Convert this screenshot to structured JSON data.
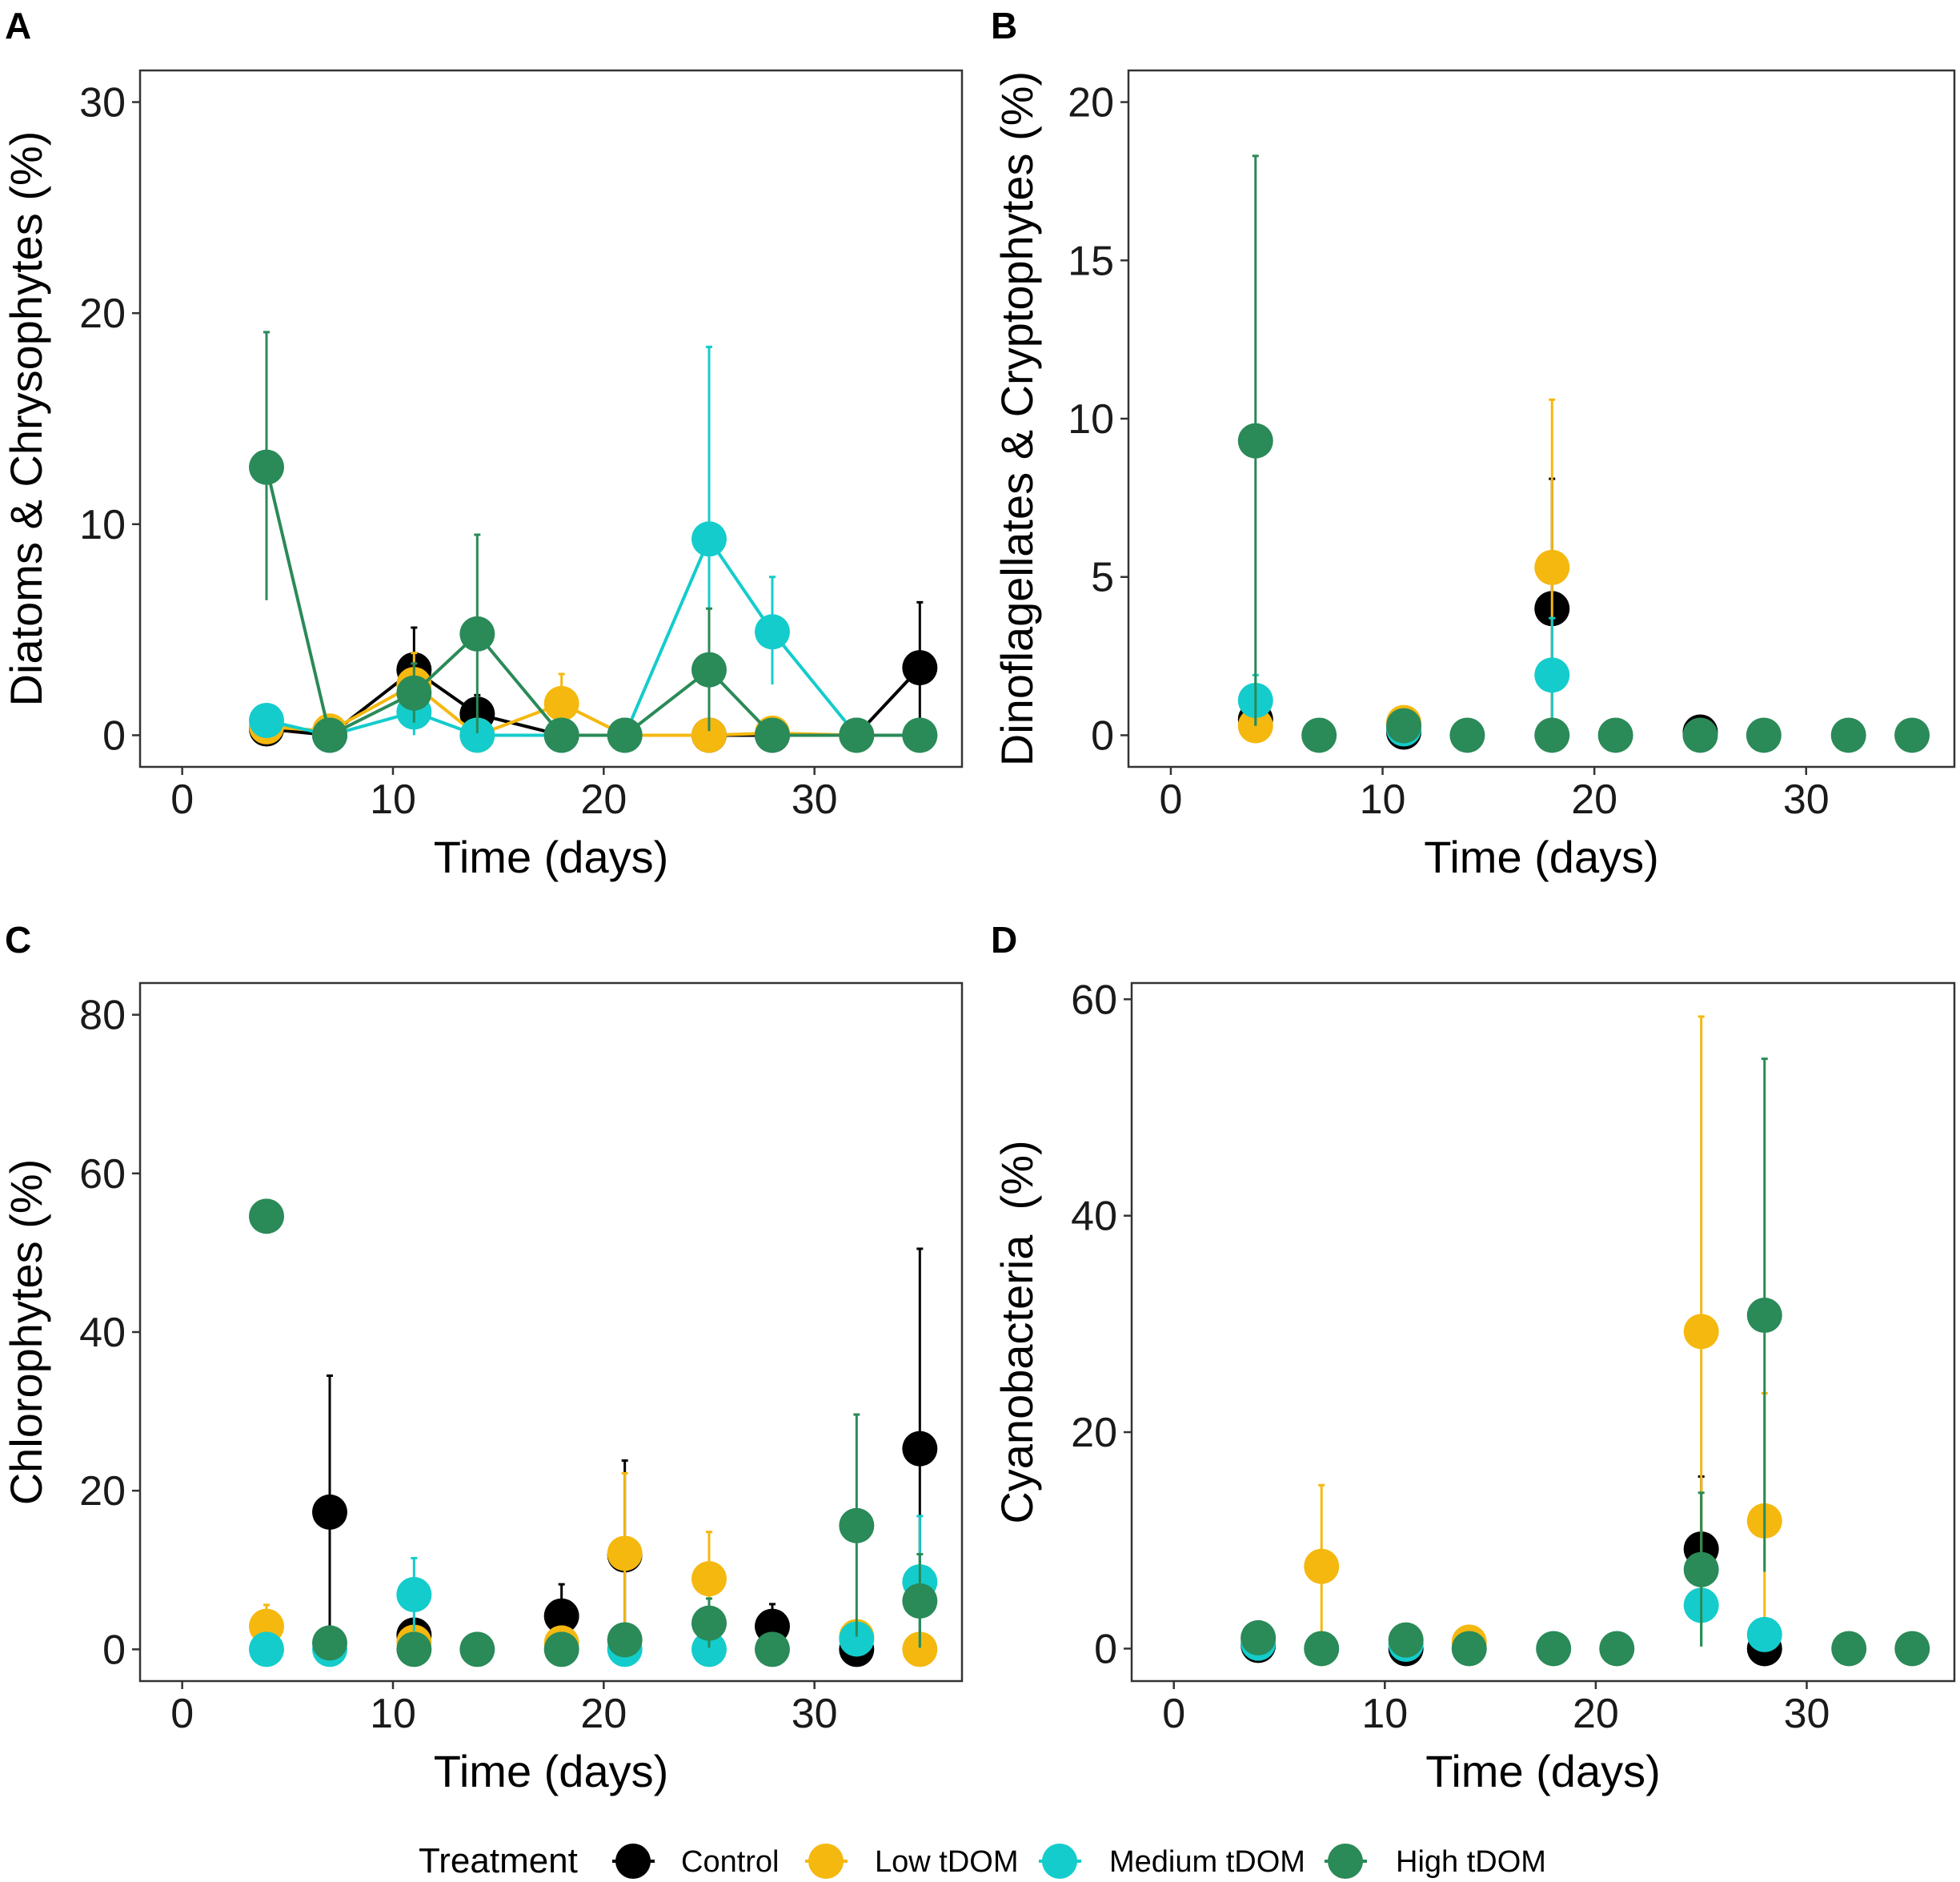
{
  "legend": {
    "title": "Treatment",
    "items": [
      {
        "label": "Control",
        "color": "#000000"
      },
      {
        "label": "Low tDOM",
        "color": "#F5B80F"
      },
      {
        "label": "Medium tDOM",
        "color": "#14CCCC"
      },
      {
        "label": "High tDOM",
        "color": "#2A8A58"
      }
    ]
  },
  "chart_data": [
    {
      "panel": "A",
      "type": "line",
      "xlabel": "Time (days)",
      "ylabel": "Diatoms & Chrysophytes (%)",
      "xlim": [
        -2,
        37
      ],
      "ylim": [
        -1.5,
        31.5
      ],
      "xticks": [
        0,
        10,
        20,
        30
      ],
      "yticks": [
        0,
        10,
        20,
        30
      ],
      "series": [
        {
          "name": "Control",
          "lines": true,
          "points": [
            {
              "x": 4,
              "y": 0.3,
              "lo": 0.1,
              "hi": 0.5
            },
            {
              "x": 7,
              "y": 0,
              "lo": 0,
              "hi": 0
            },
            {
              "x": 11,
              "y": 3.1,
              "lo": 1,
              "hi": 5.1
            },
            {
              "x": 14,
              "y": 1,
              "lo": 0.2,
              "hi": 1.9
            },
            {
              "x": 18,
              "y": 0,
              "lo": 0,
              "hi": 0
            },
            {
              "x": 21,
              "y": 0,
              "lo": 0,
              "hi": 0
            },
            {
              "x": 25,
              "y": 0,
              "lo": 0,
              "hi": 0
            },
            {
              "x": 28,
              "y": 0,
              "lo": 0,
              "hi": 0
            },
            {
              "x": 32,
              "y": 0,
              "lo": 0,
              "hi": 0
            },
            {
              "x": 35,
              "y": 3.2,
              "lo": 0,
              "hi": 6.3
            }
          ]
        },
        {
          "name": "Low tDOM",
          "lines": true,
          "points": [
            {
              "x": 4,
              "y": 0.4,
              "lo": 0.2,
              "hi": 0.6
            },
            {
              "x": 7,
              "y": 0.2,
              "lo": 0,
              "hi": 0.4
            },
            {
              "x": 11,
              "y": 2.4,
              "lo": 0.9,
              "hi": 3.9
            },
            {
              "x": 14,
              "y": 0,
              "lo": 0,
              "hi": 0
            },
            {
              "x": 18,
              "y": 1.5,
              "lo": 0,
              "hi": 2.9
            },
            {
              "x": 21,
              "y": 0,
              "lo": 0,
              "hi": 0
            },
            {
              "x": 25,
              "y": 0,
              "lo": 0,
              "hi": 0
            },
            {
              "x": 28,
              "y": 0.1,
              "lo": 0,
              "hi": 0.3
            },
            {
              "x": 32,
              "y": 0,
              "lo": 0,
              "hi": 0
            },
            {
              "x": 35,
              "y": 0,
              "lo": 0,
              "hi": 0
            }
          ]
        },
        {
          "name": "Medium tDOM",
          "lines": true,
          "points": [
            {
              "x": 4,
              "y": 0.7,
              "lo": 0.3,
              "hi": 1.1
            },
            {
              "x": 7,
              "y": 0,
              "lo": 0,
              "hi": 0
            },
            {
              "x": 11,
              "y": 1.1,
              "lo": 0,
              "hi": 2.3
            },
            {
              "x": 14,
              "y": 0,
              "lo": 0,
              "hi": 0
            },
            {
              "x": 18,
              "y": 0,
              "lo": 0,
              "hi": 0
            },
            {
              "x": 21,
              "y": 0,
              "lo": 0,
              "hi": 0
            },
            {
              "x": 25,
              "y": 9.3,
              "lo": 0.2,
              "hi": 18.4
            },
            {
              "x": 28,
              "y": 4.9,
              "lo": 2.4,
              "hi": 7.5
            },
            {
              "x": 32,
              "y": 0,
              "lo": 0,
              "hi": 0
            },
            {
              "x": 35,
              "y": 0,
              "lo": 0,
              "hi": 0
            }
          ]
        },
        {
          "name": "High tDOM",
          "lines": true,
          "points": [
            {
              "x": 4,
              "y": 12.7,
              "lo": 6.4,
              "hi": 19.1
            },
            {
              "x": 7,
              "y": 0,
              "lo": 0,
              "hi": 0
            },
            {
              "x": 11,
              "y": 2,
              "lo": 0.6,
              "hi": 3.4
            },
            {
              "x": 14,
              "y": 4.8,
              "lo": 0.1,
              "hi": 9.5
            },
            {
              "x": 18,
              "y": 0,
              "lo": 0,
              "hi": 0
            },
            {
              "x": 21,
              "y": 0,
              "lo": 0,
              "hi": 0
            },
            {
              "x": 25,
              "y": 3.1,
              "lo": 0.2,
              "hi": 6
            },
            {
              "x": 28,
              "y": 0,
              "lo": 0,
              "hi": 0
            },
            {
              "x": 32,
              "y": 0,
              "lo": 0,
              "hi": 0
            },
            {
              "x": 35,
              "y": 0,
              "lo": 0,
              "hi": 0
            }
          ]
        }
      ]
    },
    {
      "panel": "B",
      "type": "scatter",
      "xlabel": "Time (days)",
      "ylabel": "Dinoflagellates & Cryptophytes (%)",
      "xlim": [
        -2,
        37
      ],
      "ylim": [
        -1,
        21
      ],
      "xticks": [
        0,
        10,
        20,
        30
      ],
      "yticks": [
        0,
        5,
        10,
        15,
        20
      ],
      "series": [
        {
          "name": "Control",
          "lines": false,
          "points": [
            {
              "x": 4,
              "y": 0.5,
              "lo": 0.2,
              "hi": 0.8
            },
            {
              "x": 11,
              "y": 0.1,
              "lo": 0,
              "hi": 0.2
            },
            {
              "x": 18,
              "y": 4,
              "lo": 0,
              "hi": 8.1
            },
            {
              "x": 25,
              "y": 0.1,
              "lo": 0.05,
              "hi": 0.15
            }
          ]
        },
        {
          "name": "Low tDOM",
          "lines": false,
          "points": [
            {
              "x": 4,
              "y": 0.3,
              "lo": 0.1,
              "hi": 0.5
            },
            {
              "x": 11,
              "y": 0.4,
              "lo": 0.1,
              "hi": 0.7
            },
            {
              "x": 18,
              "y": 5.3,
              "lo": 0.1,
              "hi": 10.6
            }
          ]
        },
        {
          "name": "Medium tDOM",
          "lines": false,
          "points": [
            {
              "x": 4,
              "y": 1.1,
              "lo": 0.3,
              "hi": 1.9
            },
            {
              "x": 11,
              "y": 0.2,
              "lo": 0,
              "hi": 0.4
            },
            {
              "x": 18,
              "y": 1.9,
              "lo": 0.1,
              "hi": 3.7
            }
          ]
        },
        {
          "name": "High tDOM",
          "lines": false,
          "points": [
            {
              "x": 4,
              "y": 9.3,
              "lo": 0.3,
              "hi": 18.3
            },
            {
              "x": 7,
              "y": 0,
              "lo": 0,
              "hi": 0
            },
            {
              "x": 11,
              "y": 0.3,
              "lo": 0,
              "hi": 0.6
            },
            {
              "x": 14,
              "y": 0,
              "lo": 0,
              "hi": 0
            },
            {
              "x": 18,
              "y": 0,
              "lo": 0,
              "hi": 0
            },
            {
              "x": 21,
              "y": 0,
              "lo": 0,
              "hi": 0
            },
            {
              "x": 25,
              "y": 0,
              "lo": 0,
              "hi": 0
            },
            {
              "x": 28,
              "y": 0,
              "lo": 0,
              "hi": 0
            },
            {
              "x": 32,
              "y": 0,
              "lo": 0,
              "hi": 0
            },
            {
              "x": 35,
              "y": 0,
              "lo": 0,
              "hi": 0
            }
          ]
        }
      ]
    },
    {
      "panel": "C",
      "type": "scatter",
      "xlabel": "Time (days)",
      "ylabel": "Chlorophytes (%)",
      "xlim": [
        -2,
        37
      ],
      "ylim": [
        -4,
        84
      ],
      "xticks": [
        0,
        10,
        20,
        30
      ],
      "yticks": [
        0,
        20,
        40,
        60,
        80
      ],
      "series": [
        {
          "name": "Control",
          "lines": false,
          "points": [
            {
              "x": 7,
              "y": 17.3,
              "lo": 0.2,
              "hi": 34.5
            },
            {
              "x": 11,
              "y": 1.8,
              "lo": 0.2,
              "hi": 3.4
            },
            {
              "x": 18,
              "y": 4.2,
              "lo": 0.2,
              "hi": 8.2
            },
            {
              "x": 21,
              "y": 11.9,
              "lo": 0.2,
              "hi": 23.8
            },
            {
              "x": 28,
              "y": 2.9,
              "lo": 0.2,
              "hi": 5.7
            },
            {
              "x": 32,
              "y": 0,
              "lo": 0,
              "hi": 0
            },
            {
              "x": 35,
              "y": 25.3,
              "lo": 0.2,
              "hi": 50.5
            }
          ]
        },
        {
          "name": "Low tDOM",
          "lines": false,
          "points": [
            {
              "x": 4,
              "y": 2.9,
              "lo": 0.2,
              "hi": 5.6
            },
            {
              "x": 11,
              "y": 0.9,
              "lo": 0,
              "hi": 1.8
            },
            {
              "x": 18,
              "y": 0.8,
              "lo": 0,
              "hi": 1.6
            },
            {
              "x": 21,
              "y": 12.1,
              "lo": 2,
              "hi": 22.2
            },
            {
              "x": 25,
              "y": 8.9,
              "lo": 3,
              "hi": 14.8
            },
            {
              "x": 32,
              "y": 1.6,
              "lo": 0.2,
              "hi": 3
            },
            {
              "x": 35,
              "y": 0,
              "lo": 0,
              "hi": 0
            }
          ]
        },
        {
          "name": "Medium tDOM",
          "lines": false,
          "points": [
            {
              "x": 4,
              "y": 0,
              "lo": 0,
              "hi": 0
            },
            {
              "x": 7,
              "y": 0,
              "lo": 0,
              "hi": 0
            },
            {
              "x": 11,
              "y": 6.9,
              "lo": 2.3,
              "hi": 11.5
            },
            {
              "x": 21,
              "y": 0,
              "lo": 0,
              "hi": 0
            },
            {
              "x": 25,
              "y": 0,
              "lo": 0,
              "hi": 0
            },
            {
              "x": 32,
              "y": 1.3,
              "lo": 0,
              "hi": 2.6
            },
            {
              "x": 35,
              "y": 8.5,
              "lo": 0.2,
              "hi": 16.8
            }
          ]
        },
        {
          "name": "High tDOM",
          "lines": false,
          "points": [
            {
              "x": 4,
              "y": 54.6,
              "lo": 54.3,
              "hi": 54.9
            },
            {
              "x": 7,
              "y": 0.8,
              "lo": 0,
              "hi": 1.6
            },
            {
              "x": 11,
              "y": 0,
              "lo": 0,
              "hi": 0
            },
            {
              "x": 14,
              "y": 0,
              "lo": 0,
              "hi": 0
            },
            {
              "x": 18,
              "y": 0,
              "lo": 0,
              "hi": 0
            },
            {
              "x": 21,
              "y": 1.2,
              "lo": 0,
              "hi": 2.4
            },
            {
              "x": 25,
              "y": 3.3,
              "lo": 0.2,
              "hi": 6.4
            },
            {
              "x": 28,
              "y": 0,
              "lo": 0,
              "hi": 0
            },
            {
              "x": 32,
              "y": 15.6,
              "lo": 1.6,
              "hi": 29.6
            },
            {
              "x": 35,
              "y": 6.1,
              "lo": 0.2,
              "hi": 12
            }
          ]
        }
      ]
    },
    {
      "panel": "D",
      "type": "scatter",
      "xlabel": "Time (days)",
      "ylabel": "Cyanobacteria  (%)",
      "xlim": [
        -2,
        37
      ],
      "ylim": [
        -3,
        61.5
      ],
      "xticks": [
        0,
        10,
        20,
        30
      ],
      "yticks": [
        0,
        20,
        40,
        60
      ],
      "series": [
        {
          "name": "Control",
          "lines": false,
          "points": [
            {
              "x": 4,
              "y": 0.3,
              "lo": 0,
              "hi": 0.6
            },
            {
              "x": 11,
              "y": 0,
              "lo": 0,
              "hi": 0
            },
            {
              "x": 25,
              "y": 9.2,
              "lo": 2.5,
              "hi": 15.9
            },
            {
              "x": 28,
              "y": 0,
              "lo": 0,
              "hi": 0
            }
          ]
        },
        {
          "name": "Low tDOM",
          "lines": false,
          "points": [
            {
              "x": 4,
              "y": 0.8,
              "lo": 0.3,
              "hi": 1.3
            },
            {
              "x": 7,
              "y": 7.6,
              "lo": 0.3,
              "hi": 15.1
            },
            {
              "x": 14,
              "y": 0.6,
              "lo": 0.2,
              "hi": 1
            },
            {
              "x": 25,
              "y": 29.3,
              "lo": 0.2,
              "hi": 58.4
            },
            {
              "x": 28,
              "y": 11.8,
              "lo": 0.2,
              "hi": 23.6
            }
          ]
        },
        {
          "name": "Medium tDOM",
          "lines": false,
          "points": [
            {
              "x": 4,
              "y": 0.5,
              "lo": 0.1,
              "hi": 0.9
            },
            {
              "x": 11,
              "y": 0.4,
              "lo": 0.1,
              "hi": 0.7
            },
            {
              "x": 25,
              "y": 4,
              "lo": 0.2,
              "hi": 7.8
            },
            {
              "x": 28,
              "y": 1.3,
              "lo": 0.2,
              "hi": 2.4
            }
          ]
        },
        {
          "name": "High tDOM",
          "lines": false,
          "points": [
            {
              "x": 4,
              "y": 1,
              "lo": 0.2,
              "hi": 1.8
            },
            {
              "x": 7,
              "y": 0,
              "lo": 0,
              "hi": 0
            },
            {
              "x": 11,
              "y": 0.8,
              "lo": 0.2,
              "hi": 1.4
            },
            {
              "x": 14,
              "y": 0,
              "lo": 0,
              "hi": 0
            },
            {
              "x": 18,
              "y": 0,
              "lo": 0,
              "hi": 0
            },
            {
              "x": 21,
              "y": 0,
              "lo": 0,
              "hi": 0
            },
            {
              "x": 25,
              "y": 7.3,
              "lo": 0.2,
              "hi": 14.4
            },
            {
              "x": 28,
              "y": 30.8,
              "lo": 7.1,
              "hi": 54.5
            },
            {
              "x": 32,
              "y": 0,
              "lo": 0,
              "hi": 0
            },
            {
              "x": 35,
              "y": 0,
              "lo": 0,
              "hi": 0
            }
          ]
        }
      ]
    }
  ]
}
